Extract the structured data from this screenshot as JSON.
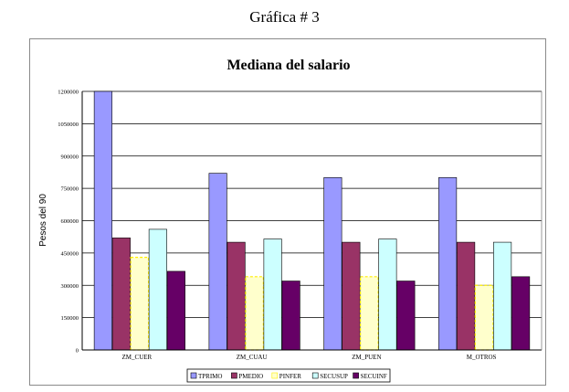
{
  "page_heading": "Gráfica # 3",
  "chart_data": {
    "type": "bar",
    "title": "Mediana del salario",
    "xlabel": "",
    "ylabel": "Pesos del 90",
    "ylim": [
      0,
      1200000
    ],
    "yticks": [
      0,
      150000,
      300000,
      450000,
      600000,
      750000,
      900000,
      1050000,
      1200000
    ],
    "ytick_labels": [
      "0",
      "150000",
      "300000",
      "450000",
      "600000",
      "750000",
      "900000",
      "1050000",
      "1200000"
    ],
    "grid": true,
    "legend_position": "bottom",
    "categories": [
      "ZM_CUER",
      "ZM_CUAU",
      "ZM_PUEN",
      "M_OTROS"
    ],
    "series": [
      {
        "name": "TPRIMO",
        "color": "#9999ff",
        "values": [
          1200000,
          820000,
          800000,
          800000
        ]
      },
      {
        "name": "PMEDIO",
        "color": "#993366",
        "values": [
          520000,
          500000,
          500000,
          500000
        ]
      },
      {
        "name": "PINFER",
        "color": "#ffffcc",
        "values": [
          430000,
          340000,
          340000,
          300000
        ]
      },
      {
        "name": "SECUSUP",
        "color": "#ccffff",
        "values": [
          560000,
          515000,
          515000,
          500000
        ]
      },
      {
        "name": "SECUINF",
        "color": "#660066",
        "values": [
          365000,
          320000,
          320000,
          340000
        ]
      }
    ]
  }
}
